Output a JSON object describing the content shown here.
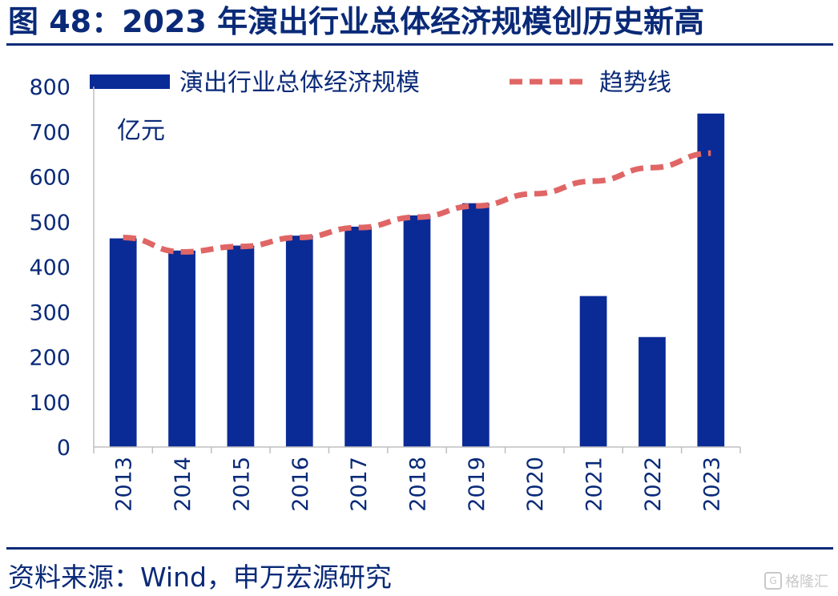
{
  "header": {
    "title": "图 48：2023 年演出行业总体经济规模创历史新高"
  },
  "footer": {
    "source": "资料来源：Wind，申万宏源研究",
    "watermark": "格隆汇"
  },
  "colors": {
    "bar": "#0a2a96",
    "trend": "#e06666",
    "text": "#0a2a78",
    "axis": "#bfbfbf"
  },
  "chart_data": {
    "type": "bar",
    "unit_label": "亿元",
    "categories": [
      "2013",
      "2014",
      "2015",
      "2016",
      "2017",
      "2018",
      "2019",
      "2020",
      "2021",
      "2022",
      "2023"
    ],
    "series": [
      {
        "name": "演出行业总体经济规模",
        "type": "bar",
        "values": [
          463,
          436,
          447,
          469,
          489,
          514,
          541,
          null,
          335,
          244,
          740
        ]
      },
      {
        "name": "趋势线",
        "type": "line",
        "style": "dashed",
        "values": [
          465,
          433,
          445,
          465,
          487,
          510,
          535,
          562,
          590,
          620,
          652
        ]
      }
    ],
    "y_ticks": [
      "0",
      "100",
      "200",
      "300",
      "400",
      "500",
      "600",
      "700",
      "800"
    ],
    "ylim": [
      0,
      800
    ],
    "legend_position": "top",
    "grid": false
  }
}
